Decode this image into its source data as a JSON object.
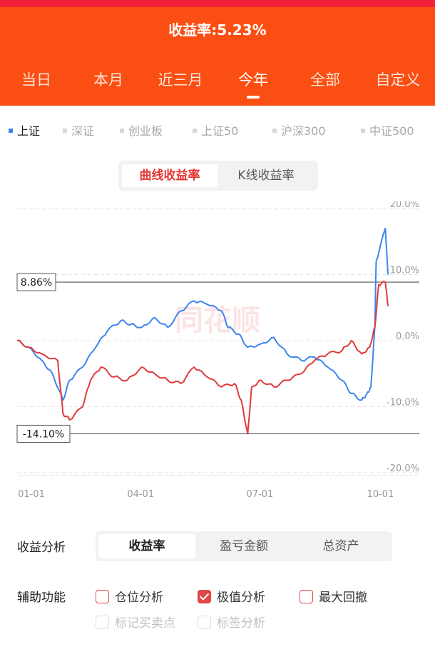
{
  "header": {
    "title": "收益率:5.23%",
    "tabs": [
      "当日",
      "本月",
      "近三月",
      "今年",
      "全部",
      "自定义"
    ],
    "active_tab": "今年",
    "colors": {
      "header_bg": "#fb4e12",
      "status_strip": "#f3203c"
    }
  },
  "indices": {
    "items": [
      "上证",
      "深证",
      "创业板",
      "上证50",
      "沪深300",
      "中证500"
    ],
    "active": "上证"
  },
  "chart_mode": {
    "options": [
      "曲线收益率",
      "K线收益率"
    ],
    "active": "曲线收益率"
  },
  "chart": {
    "watermark": "同花顺",
    "max_label": "8.86%",
    "min_label": "-14.10%",
    "y_tick_labels": [
      "20.0%",
      "10.0%",
      "0.0%",
      "-10.0%",
      "-20.0%"
    ],
    "x_tick_labels": [
      "01-01",
      "04-01",
      "07-01",
      "10-01"
    ]
  },
  "chart_data": {
    "type": "line",
    "x_range": [
      "01-01",
      "10-10"
    ],
    "ylim": [
      -20,
      20
    ],
    "y_ticks": [
      20,
      10,
      0,
      -10,
      -20
    ],
    "x_ticks": [
      "01-01",
      "04-01",
      "07-01",
      "10-01"
    ],
    "grid": "dashed horizontal",
    "reference_lines": [
      8.86,
      -14.1
    ],
    "series": [
      {
        "color": "#3d85f0",
        "points": [
          [
            "01-01",
            0.0
          ],
          [
            "01-10",
            -1.0
          ],
          [
            "01-20",
            -3.0
          ],
          [
            "01-28",
            -5.0
          ],
          [
            "02-05",
            -9.0
          ],
          [
            "02-10",
            -6.0
          ],
          [
            "02-20",
            -4.0
          ],
          [
            "03-01",
            -1.0
          ],
          [
            "03-10",
            1.5
          ],
          [
            "03-20",
            3.0
          ],
          [
            "03-28",
            2.5
          ],
          [
            "04-05",
            2.0
          ],
          [
            "04-15",
            3.5
          ],
          [
            "04-25",
            2.0
          ],
          [
            "05-05",
            4.5
          ],
          [
            "05-15",
            6.0
          ],
          [
            "05-25",
            5.5
          ],
          [
            "06-05",
            4.5
          ],
          [
            "06-10",
            2.0
          ],
          [
            "06-18",
            1.0
          ],
          [
            "06-25",
            -1.0
          ],
          [
            "07-05",
            -0.5
          ],
          [
            "07-15",
            0.5
          ],
          [
            "07-25",
            -2.0
          ],
          [
            "08-05",
            -3.0
          ],
          [
            "08-15",
            -2.5
          ],
          [
            "08-25",
            -4.0
          ],
          [
            "09-05",
            -6.0
          ],
          [
            "09-12",
            -8.0
          ],
          [
            "09-20",
            -9.0
          ],
          [
            "09-24",
            -8.0
          ],
          [
            "09-27",
            -7.0
          ],
          [
            "09-30",
            2.0
          ],
          [
            "10-01",
            12.0
          ],
          [
            "10-08",
            17.0
          ],
          [
            "10-10",
            10.0
          ]
        ]
      },
      {
        "color": "#e03a3a",
        "points": [
          [
            "01-01",
            0.0
          ],
          [
            "01-10",
            -1.0
          ],
          [
            "01-20",
            -2.0
          ],
          [
            "02-01",
            -3.0
          ],
          [
            "02-05",
            -11.0
          ],
          [
            "02-10",
            -12.0
          ],
          [
            "02-20",
            -10.0
          ],
          [
            "02-26",
            -6.0
          ],
          [
            "03-05",
            -4.0
          ],
          [
            "03-15",
            -5.5
          ],
          [
            "03-25",
            -6.0
          ],
          [
            "04-05",
            -4.0
          ],
          [
            "04-15",
            -5.0
          ],
          [
            "04-25",
            -6.0
          ],
          [
            "05-05",
            -6.5
          ],
          [
            "05-15",
            -4.0
          ],
          [
            "05-25",
            -5.5
          ],
          [
            "06-05",
            -7.0
          ],
          [
            "06-15",
            -6.5
          ],
          [
            "06-20",
            -9.0
          ],
          [
            "06-25",
            -14.1
          ],
          [
            "06-28",
            -7.0
          ],
          [
            "07-05",
            -6.0
          ],
          [
            "07-15",
            -7.0
          ],
          [
            "07-25",
            -6.0
          ],
          [
            "08-05",
            -5.0
          ],
          [
            "08-15",
            -3.0
          ],
          [
            "08-25",
            -2.0
          ],
          [
            "09-05",
            -1.5
          ],
          [
            "09-12",
            0.0
          ],
          [
            "09-20",
            -2.0
          ],
          [
            "09-26",
            -1.0
          ],
          [
            "09-30",
            2.0
          ],
          [
            "10-03",
            8.5
          ],
          [
            "10-08",
            8.86
          ],
          [
            "10-10",
            5.23
          ]
        ]
      }
    ]
  },
  "analysis": {
    "label": "收益分析",
    "options": [
      "收益率",
      "盈亏金额",
      "总资产"
    ],
    "active": "收益率"
  },
  "aux": {
    "label": "辅助功能",
    "options": [
      {
        "label": "仓位分析",
        "checked": false,
        "enabled": true
      },
      {
        "label": "极值分析",
        "checked": true,
        "enabled": true
      },
      {
        "label": "最大回撤",
        "checked": false,
        "enabled": true
      },
      {
        "label": "标记买卖点",
        "checked": false,
        "enabled": false
      },
      {
        "label": "标签分析",
        "checked": false,
        "enabled": false
      }
    ]
  }
}
